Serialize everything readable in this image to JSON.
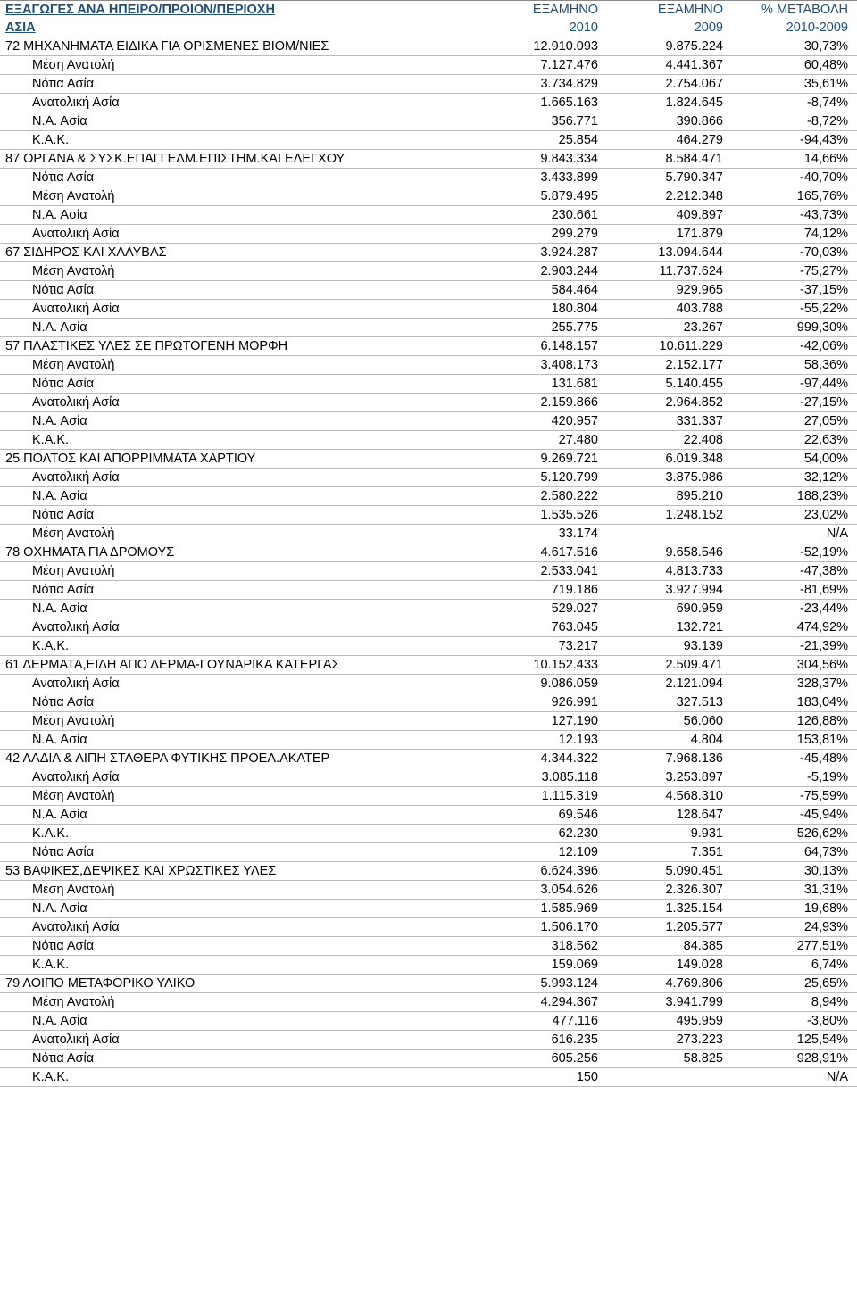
{
  "header": {
    "title_line1": "ΕΞΑΓΩΓΕΣ ΑΝΑ ΗΠΕΙΡΟ/ΠΡΟΙΟΝ/ΠΕΡΙΟΧΗ",
    "title_line2": "ΑΣΙΑ",
    "col2_line1": "ΕΞΑΜΗΝΟ",
    "col2_line2": "2010",
    "col3_line1": "ΕΞΑΜΗΝΟ",
    "col3_line2": "2009",
    "col4_line1": "% ΜΕΤΑΒΟΛΗ",
    "col4_line2": "2010-2009"
  },
  "rows": [
    {
      "t": "cat",
      "c1": "72   ΜΗΧΑΝΗΜΑΤΑ ΕΙΔΙΚΑ ΓΙΑ ΟΡΙΣΜΕΝΕΣ ΒΙΟΜ/ΝΙΕΣ",
      "c2": "12.910.093",
      "c3": "9.875.224",
      "c4": "30,73%"
    },
    {
      "t": "sub",
      "c1": "Μέση Ανατολή",
      "c2": "7.127.476",
      "c3": "4.441.367",
      "c4": "60,48%"
    },
    {
      "t": "sub",
      "c1": "Νότια Ασία",
      "c2": "3.734.829",
      "c3": "2.754.067",
      "c4": "35,61%"
    },
    {
      "t": "sub",
      "c1": "Ανατολική Ασία",
      "c2": "1.665.163",
      "c3": "1.824.645",
      "c4": "-8,74%"
    },
    {
      "t": "sub",
      "c1": "Ν.Α. Ασία",
      "c2": "356.771",
      "c3": "390.866",
      "c4": "-8,72%"
    },
    {
      "t": "sub",
      "c1": "Κ.Α.Κ.",
      "c2": "25.854",
      "c3": "464.279",
      "c4": "-94,43%"
    },
    {
      "t": "cat",
      "c1": "87   ΟΡΓΑΝΑ & ΣΥΣΚ.ΕΠΑΓΓΕΛΜ.ΕΠΙΣΤΗΜ.ΚΑΙ ΕΛΕΓΧΟΥ",
      "c2": "9.843.334",
      "c3": "8.584.471",
      "c4": "14,66%"
    },
    {
      "t": "sub",
      "c1": "Νότια Ασία",
      "c2": "3.433.899",
      "c3": "5.790.347",
      "c4": "-40,70%"
    },
    {
      "t": "sub",
      "c1": "Μέση Ανατολή",
      "c2": "5.879.495",
      "c3": "2.212.348",
      "c4": "165,76%"
    },
    {
      "t": "sub",
      "c1": "Ν.Α. Ασία",
      "c2": "230.661",
      "c3": "409.897",
      "c4": "-43,73%"
    },
    {
      "t": "sub",
      "c1": "Ανατολική Ασία",
      "c2": "299.279",
      "c3": "171.879",
      "c4": "74,12%"
    },
    {
      "t": "cat",
      "c1": "67   ΣΙΔΗΡΟΣ ΚΑΙ ΧΑΛΥΒΑΣ",
      "c2": "3.924.287",
      "c3": "13.094.644",
      "c4": "-70,03%"
    },
    {
      "t": "sub",
      "c1": "Μέση Ανατολή",
      "c2": "2.903.244",
      "c3": "11.737.624",
      "c4": "-75,27%"
    },
    {
      "t": "sub",
      "c1": "Νότια Ασία",
      "c2": "584.464",
      "c3": "929.965",
      "c4": "-37,15%"
    },
    {
      "t": "sub",
      "c1": "Ανατολική Ασία",
      "c2": "180.804",
      "c3": "403.788",
      "c4": "-55,22%"
    },
    {
      "t": "sub",
      "c1": "Ν.Α. Ασία",
      "c2": "255.775",
      "c3": "23.267",
      "c4": "999,30%"
    },
    {
      "t": "cat",
      "c1": "57   ΠΛΑΣΤΙΚΕΣ ΥΛΕΣ ΣΕ ΠΡΩΤΟΓΕΝΗ ΜΟΡΦΗ",
      "c2": "6.148.157",
      "c3": "10.611.229",
      "c4": "-42,06%"
    },
    {
      "t": "sub",
      "c1": "Μέση Ανατολή",
      "c2": "3.408.173",
      "c3": "2.152.177",
      "c4": "58,36%"
    },
    {
      "t": "sub",
      "c1": "Νότια Ασία",
      "c2": "131.681",
      "c3": "5.140.455",
      "c4": "-97,44%"
    },
    {
      "t": "sub",
      "c1": "Ανατολική Ασία",
      "c2": "2.159.866",
      "c3": "2.964.852",
      "c4": "-27,15%"
    },
    {
      "t": "sub",
      "c1": "Ν.Α. Ασία",
      "c2": "420.957",
      "c3": "331.337",
      "c4": "27,05%"
    },
    {
      "t": "sub",
      "c1": "Κ.Α.Κ.",
      "c2": "27.480",
      "c3": "22.408",
      "c4": "22,63%"
    },
    {
      "t": "cat",
      "c1": "25   ΠΟΛΤΟΣ ΚΑΙ ΑΠΟΡΡΙΜΜΑΤΑ ΧΑΡΤΙΟΥ",
      "c2": "9.269.721",
      "c3": "6.019.348",
      "c4": "54,00%"
    },
    {
      "t": "sub",
      "c1": "Ανατολική Ασία",
      "c2": "5.120.799",
      "c3": "3.875.986",
      "c4": "32,12%"
    },
    {
      "t": "sub",
      "c1": "Ν.Α. Ασία",
      "c2": "2.580.222",
      "c3": "895.210",
      "c4": "188,23%"
    },
    {
      "t": "sub",
      "c1": "Νότια Ασία",
      "c2": "1.535.526",
      "c3": "1.248.152",
      "c4": "23,02%"
    },
    {
      "t": "sub",
      "c1": "Μέση Ανατολή",
      "c2": "33.174",
      "c3": "",
      "c4": "N/A"
    },
    {
      "t": "cat",
      "c1": "78   ΟΧΗΜΑΤΑ ΓΙΑ ΔΡΟΜΟΥΣ",
      "c2": "4.617.516",
      "c3": "9.658.546",
      "c4": "-52,19%"
    },
    {
      "t": "sub",
      "c1": "Μέση Ανατολή",
      "c2": "2.533.041",
      "c3": "4.813.733",
      "c4": "-47,38%"
    },
    {
      "t": "sub",
      "c1": "Νότια Ασία",
      "c2": "719.186",
      "c3": "3.927.994",
      "c4": "-81,69%"
    },
    {
      "t": "sub",
      "c1": "Ν.Α. Ασία",
      "c2": "529.027",
      "c3": "690.959",
      "c4": "-23,44%"
    },
    {
      "t": "sub",
      "c1": "Ανατολική Ασία",
      "c2": "763.045",
      "c3": "132.721",
      "c4": "474,92%"
    },
    {
      "t": "sub",
      "c1": "Κ.Α.Κ.",
      "c2": "73.217",
      "c3": "93.139",
      "c4": "-21,39%"
    },
    {
      "t": "cat",
      "c1": "61   ΔΕΡΜΑΤΑ,ΕΙΔΗ ΑΠΟ ΔΕΡΜΑ-ΓΟΥΝΑΡΙΚΑ ΚΑΤΕΡΓΑΣ",
      "c2": "10.152.433",
      "c3": "2.509.471",
      "c4": "304,56%"
    },
    {
      "t": "sub",
      "c1": "Ανατολική Ασία",
      "c2": "9.086.059",
      "c3": "2.121.094",
      "c4": "328,37%"
    },
    {
      "t": "sub",
      "c1": "Νότια Ασία",
      "c2": "926.991",
      "c3": "327.513",
      "c4": "183,04%"
    },
    {
      "t": "sub",
      "c1": "Μέση Ανατολή",
      "c2": "127.190",
      "c3": "56.060",
      "c4": "126,88%"
    },
    {
      "t": "sub",
      "c1": "Ν.Α. Ασία",
      "c2": "12.193",
      "c3": "4.804",
      "c4": "153,81%"
    },
    {
      "t": "cat",
      "c1": "42   ΛΑΔΙΑ & ΛΙΠΗ ΣΤΑΘΕΡΑ ΦΥΤΙΚΗΣ ΠΡΟΕΛ.ΑΚΑΤΕΡ",
      "c2": "4.344.322",
      "c3": "7.968.136",
      "c4": "-45,48%"
    },
    {
      "t": "sub",
      "c1": "Ανατολική Ασία",
      "c2": "3.085.118",
      "c3": "3.253.897",
      "c4": "-5,19%"
    },
    {
      "t": "sub",
      "c1": "Μέση Ανατολή",
      "c2": "1.115.319",
      "c3": "4.568.310",
      "c4": "-75,59%"
    },
    {
      "t": "sub",
      "c1": "Ν.Α. Ασία",
      "c2": "69.546",
      "c3": "128.647",
      "c4": "-45,94%"
    },
    {
      "t": "sub",
      "c1": "Κ.Α.Κ.",
      "c2": "62.230",
      "c3": "9.931",
      "c4": "526,62%"
    },
    {
      "t": "sub",
      "c1": "Νότια Ασία",
      "c2": "12.109",
      "c3": "7.351",
      "c4": "64,73%"
    },
    {
      "t": "cat",
      "c1": "53   ΒΑΦΙΚΕΣ,ΔΕΨΙΚΕΣ ΚΑΙ ΧΡΩΣΤΙΚΕΣ ΥΛΕΣ",
      "c2": "6.624.396",
      "c3": "5.090.451",
      "c4": "30,13%"
    },
    {
      "t": "sub",
      "c1": "Μέση Ανατολή",
      "c2": "3.054.626",
      "c3": "2.326.307",
      "c4": "31,31%"
    },
    {
      "t": "sub",
      "c1": "Ν.Α. Ασία",
      "c2": "1.585.969",
      "c3": "1.325.154",
      "c4": "19,68%"
    },
    {
      "t": "sub",
      "c1": "Ανατολική Ασία",
      "c2": "1.506.170",
      "c3": "1.205.577",
      "c4": "24,93%"
    },
    {
      "t": "sub",
      "c1": "Νότια Ασία",
      "c2": "318.562",
      "c3": "84.385",
      "c4": "277,51%"
    },
    {
      "t": "sub",
      "c1": "Κ.Α.Κ.",
      "c2": "159.069",
      "c3": "149.028",
      "c4": "6,74%"
    },
    {
      "t": "cat",
      "c1": "79   ΛΟΙΠΟ ΜΕΤΑΦΟΡΙΚΟ ΥΛΙΚΟ",
      "c2": "5.993.124",
      "c3": "4.769.806",
      "c4": "25,65%"
    },
    {
      "t": "sub",
      "c1": "Μέση Ανατολή",
      "c2": "4.294.367",
      "c3": "3.941.799",
      "c4": "8,94%"
    },
    {
      "t": "sub",
      "c1": "Ν.Α. Ασία",
      "c2": "477.116",
      "c3": "495.959",
      "c4": "-3,80%"
    },
    {
      "t": "sub",
      "c1": "Ανατολική Ασία",
      "c2": "616.235",
      "c3": "273.223",
      "c4": "125,54%"
    },
    {
      "t": "sub",
      "c1": "Νότια Ασία",
      "c2": "605.256",
      "c3": "58.825",
      "c4": "928,91%"
    },
    {
      "t": "sub",
      "c1": "Κ.Α.Κ.",
      "c2": "150",
      "c3": "",
      "c4": "N/A"
    }
  ]
}
